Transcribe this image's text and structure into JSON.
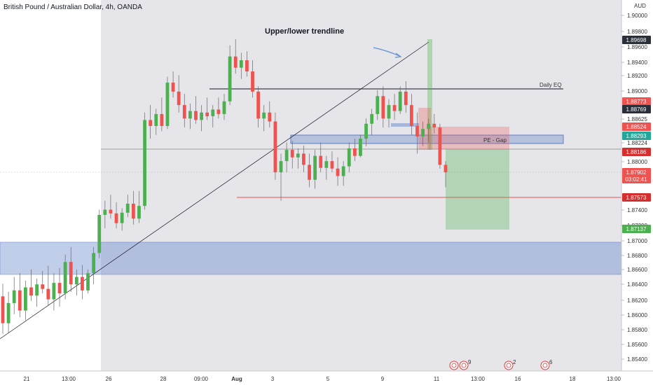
{
  "chart_data": {
    "type": "candlestick",
    "title": "British Pound / Australian Dollar, 4h, OANDA",
    "currency_label": "AUD",
    "y_ticks": [
      "1.90000",
      "1.89800",
      "1.89600",
      "1.89400",
      "1.89200",
      "1.89000",
      "1.88625",
      "1.88224",
      "1.88000",
      "1.87400",
      "1.87200",
      "1.87000",
      "1.86800",
      "1.86600",
      "1.86400",
      "1.86200",
      "1.86000",
      "1.85800",
      "1.85600",
      "1.85400"
    ],
    "x_ticks": [
      "21",
      "13:00",
      "26",
      "28",
      "09:00",
      "Aug",
      "3",
      "5",
      "9",
      "11",
      "13:00",
      "16",
      "18",
      "13:00"
    ],
    "price_tags": [
      {
        "text": "1.89698",
        "color": "#2a2e39"
      },
      {
        "text": "1.88773",
        "color": "#ef5350"
      },
      {
        "text": "1.88769",
        "color": "#2a2e39"
      },
      {
        "text": "1.88524",
        "color": "#ef5350"
      },
      {
        "text": "1.88293",
        "color": "#26a69a"
      },
      {
        "text": "1.88186",
        "color": "#d32f2f"
      },
      {
        "text": "1.87902",
        "color": "#ef5350"
      },
      {
        "text": "03:02:41",
        "color": "#ef5350"
      },
      {
        "text": "1.87573",
        "color": "#d32f2f"
      },
      {
        "text": "1.87137",
        "color": "#4caf50"
      }
    ],
    "annotations": [
      "Upper/lower trendline",
      "Daily EQ",
      "PE - Gap"
    ],
    "event_counts": [
      "9",
      "2",
      "6"
    ],
    "colors": {
      "up": "#4caf50",
      "down": "#ef5350",
      "zone": "#5b7fc7",
      "target": "#8bc47f",
      "stop": "#ef9a9a"
    },
    "candles_ohlc": [
      [
        1.8624,
        1.8641,
        1.8574,
        1.8588
      ],
      [
        1.8588,
        1.863,
        1.8575,
        1.8615
      ],
      [
        1.8615,
        1.865,
        1.86,
        1.8632
      ],
      [
        1.8632,
        1.8655,
        1.8596,
        1.8605
      ],
      [
        1.8605,
        1.8645,
        1.8592,
        1.8636
      ],
      [
        1.8636,
        1.866,
        1.8618,
        1.8625
      ],
      [
        1.8625,
        1.8648,
        1.861,
        1.864
      ],
      [
        1.864,
        1.8658,
        1.8628,
        1.8634
      ],
      [
        1.8634,
        1.8665,
        1.8612,
        1.862
      ],
      [
        1.862,
        1.8655,
        1.8605,
        1.8642
      ],
      [
        1.8642,
        1.8662,
        1.861,
        1.8628
      ],
      [
        1.8628,
        1.868,
        1.862,
        1.867
      ],
      [
        1.867,
        1.869,
        1.863,
        1.864
      ],
      [
        1.864,
        1.866,
        1.8625,
        1.865
      ],
      [
        1.865,
        1.8666,
        1.862,
        1.8632
      ],
      [
        1.8632,
        1.866,
        1.8628,
        1.8655
      ],
      [
        1.8655,
        1.869,
        1.864,
        1.8682
      ],
      [
        1.8682,
        1.874,
        1.8675,
        1.8733
      ],
      [
        1.8733,
        1.8752,
        1.8715,
        1.874
      ],
      [
        1.874,
        1.876,
        1.8728,
        1.8735
      ],
      [
        1.8735,
        1.875,
        1.8715,
        1.8722
      ],
      [
        1.8722,
        1.8742,
        1.8712,
        1.8736
      ],
      [
        1.8736,
        1.876,
        1.873,
        1.8748
      ],
      [
        1.8748,
        1.8765,
        1.872,
        1.8728
      ],
      [
        1.8728,
        1.8765,
        1.8722,
        1.8745
      ],
      [
        1.8745,
        1.887,
        1.874,
        1.886
      ],
      [
        1.886,
        1.888,
        1.8835,
        1.8852
      ],
      [
        1.8852,
        1.8875,
        1.884,
        1.8868
      ],
      [
        1.8868,
        1.889,
        1.8845,
        1.8852
      ],
      [
        1.8852,
        1.8918,
        1.8848,
        1.891
      ],
      [
        1.891,
        1.8925,
        1.889,
        1.8898
      ],
      [
        1.8898,
        1.892,
        1.887,
        1.888
      ],
      [
        1.888,
        1.8895,
        1.885,
        1.8862
      ],
      [
        1.8862,
        1.8882,
        1.8848,
        1.8872
      ],
      [
        1.8872,
        1.8892,
        1.8855,
        1.886
      ],
      [
        1.886,
        1.888,
        1.8845,
        1.887
      ],
      [
        1.887,
        1.889,
        1.886,
        1.8865
      ],
      [
        1.8865,
        1.888,
        1.885,
        1.8874
      ],
      [
        1.8874,
        1.889,
        1.8862,
        1.8868
      ],
      [
        1.8868,
        1.8895,
        1.886,
        1.8885
      ],
      [
        1.8885,
        1.896,
        1.888,
        1.8945
      ],
      [
        1.8945,
        1.8968,
        1.8922,
        1.893
      ],
      [
        1.893,
        1.895,
        1.8915,
        1.894
      ],
      [
        1.894,
        1.8952,
        1.8918,
        1.8925
      ],
      [
        1.8925,
        1.894,
        1.889,
        1.8898
      ],
      [
        1.8898,
        1.8905,
        1.885,
        1.8862
      ],
      [
        1.8862,
        1.888,
        1.8845,
        1.887
      ],
      [
        1.887,
        1.8885,
        1.885,
        1.8858
      ],
      [
        1.8858,
        1.887,
        1.878,
        1.879
      ],
      [
        1.879,
        1.8815,
        1.8752,
        1.8805
      ],
      [
        1.8805,
        1.883,
        1.879,
        1.882
      ],
      [
        1.882,
        1.8832,
        1.8795,
        1.881
      ],
      [
        1.881,
        1.8822,
        1.8795,
        1.8815
      ],
      [
        1.8815,
        1.8826,
        1.879,
        1.88
      ],
      [
        1.88,
        1.8815,
        1.877,
        1.878
      ],
      [
        1.878,
        1.882,
        1.8768,
        1.8812
      ],
      [
        1.8812,
        1.883,
        1.879,
        1.8796
      ],
      [
        1.8796,
        1.8812,
        1.878,
        1.8805
      ],
      [
        1.8805,
        1.8818,
        1.879,
        1.8795
      ],
      [
        1.8795,
        1.881,
        1.8772,
        1.8785
      ],
      [
        1.8785,
        1.8805,
        1.8772,
        1.8798
      ],
      [
        1.8798,
        1.883,
        1.879,
        1.8822
      ],
      [
        1.8822,
        1.8835,
        1.8805,
        1.8812
      ],
      [
        1.8812,
        1.884,
        1.881,
        1.8835
      ],
      [
        1.8835,
        1.8862,
        1.8825,
        1.8855
      ],
      [
        1.8855,
        1.8875,
        1.884,
        1.8868
      ],
      [
        1.8868,
        1.89,
        1.886,
        1.8892
      ],
      [
        1.8892,
        1.8905,
        1.885,
        1.8862
      ],
      [
        1.8862,
        1.8888,
        1.885,
        1.888
      ],
      [
        1.888,
        1.8895,
        1.886,
        1.8872
      ],
      [
        1.8872,
        1.8905,
        1.8868,
        1.8898
      ],
      [
        1.8898,
        1.8912,
        1.887,
        1.888
      ],
      [
        1.888,
        1.8895,
        1.884,
        1.8852
      ],
      [
        1.8852,
        1.887,
        1.8815,
        1.8838
      ],
      [
        1.8838,
        1.8858,
        1.8825,
        1.8848
      ],
      [
        1.8848,
        1.8862,
        1.883,
        1.8855
      ],
      [
        1.8855,
        1.8868,
        1.8842,
        1.885
      ],
      [
        1.885,
        1.8855,
        1.8795,
        1.88
      ],
      [
        1.88,
        1.8805,
        1.877,
        1.879
      ]
    ]
  }
}
